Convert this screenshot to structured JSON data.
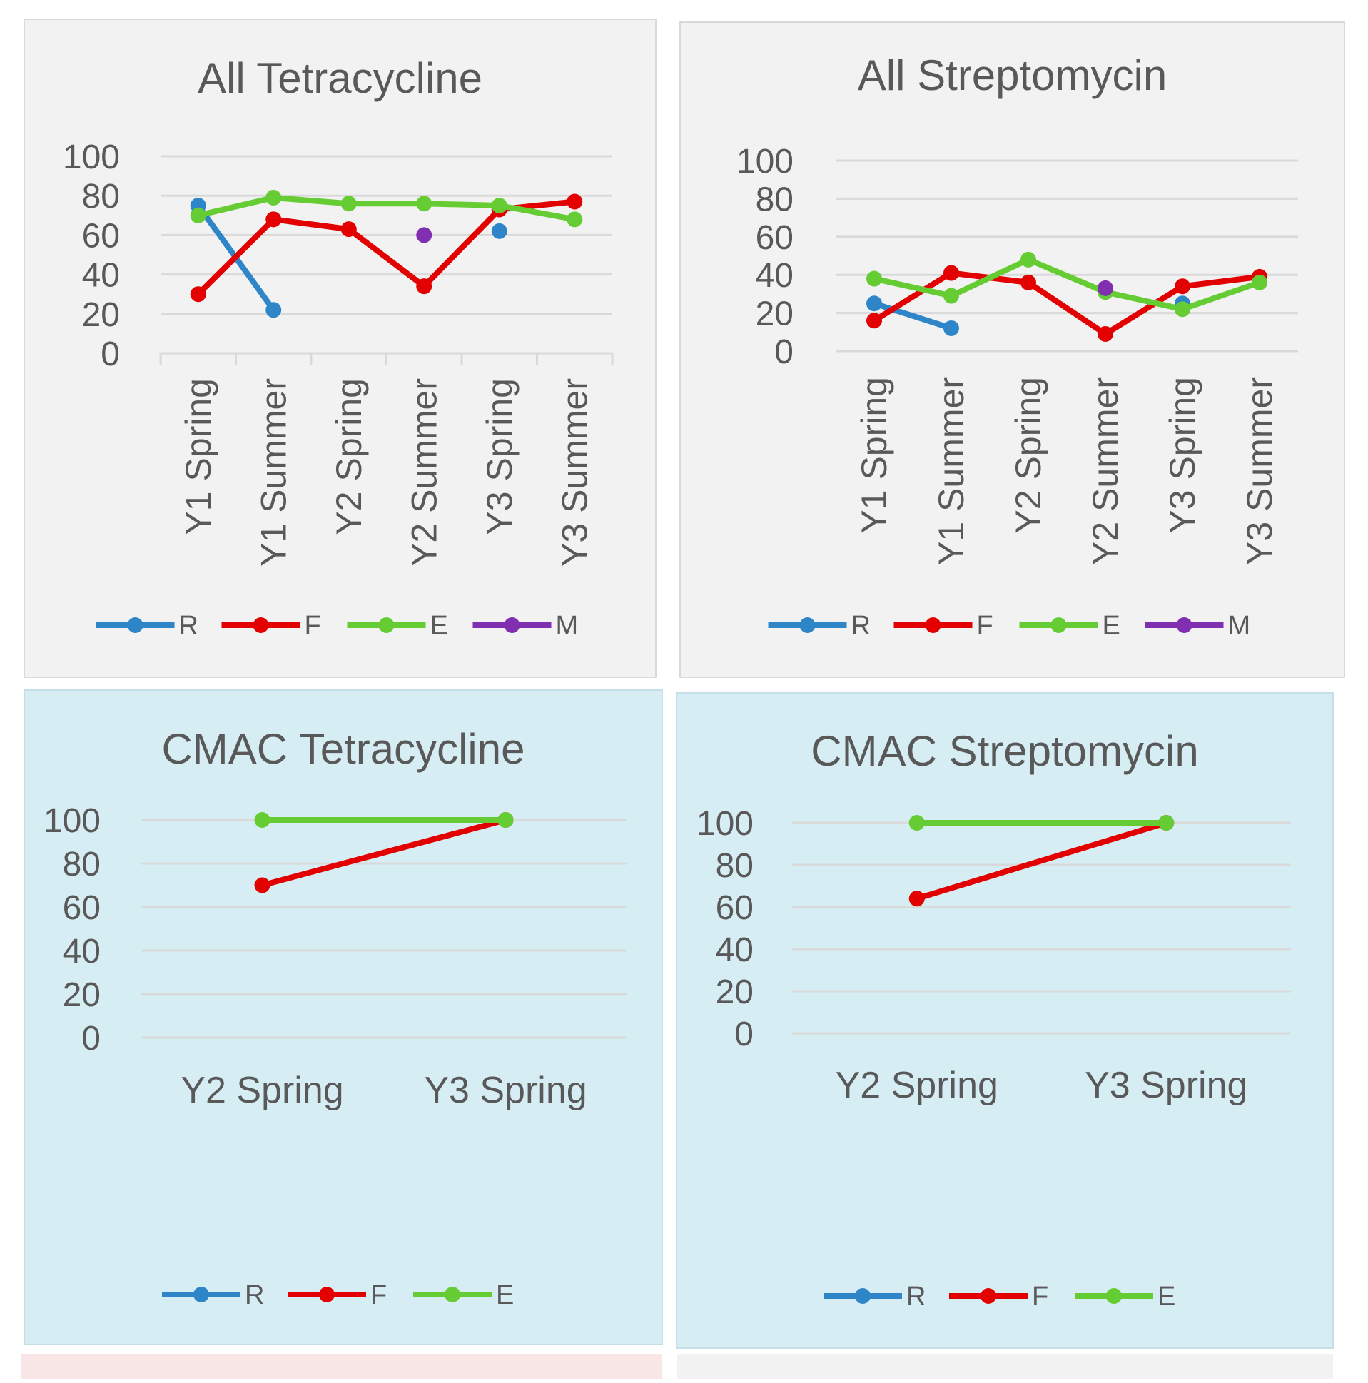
{
  "colors": {
    "R": "#2e86c8",
    "F": "#e30000",
    "E": "#66cc33",
    "M": "#7f2fb0"
  },
  "chart_data": [
    {
      "type": "line",
      "title": "All Tetracycline",
      "categories": [
        "Y1 Spring",
        "Y1 Summer",
        "Y2 Spring",
        "Y2 Summer",
        "Y3 Spring",
        "Y3 Summer"
      ],
      "ylim": [
        0,
        100
      ],
      "yticks": [
        "0",
        "20",
        "40",
        "60",
        "80",
        "100"
      ],
      "grid": true,
      "legend": "bottom",
      "series": [
        {
          "name": "R",
          "values": [
            75,
            22,
            null,
            null,
            62,
            null
          ]
        },
        {
          "name": "F",
          "values": [
            30,
            68,
            63,
            34,
            73,
            77
          ]
        },
        {
          "name": "E",
          "values": [
            70,
            79,
            76,
            76,
            75,
            68
          ]
        },
        {
          "name": "M",
          "values": [
            null,
            null,
            null,
            60,
            null,
            null
          ]
        }
      ]
    },
    {
      "type": "line",
      "title": "All Streptomycin",
      "categories": [
        "Y1 Spring",
        "Y1 Summer",
        "Y2 Spring",
        "Y2 Summer",
        "Y3 Spring",
        "Y3 Summer"
      ],
      "ylim": [
        0,
        100
      ],
      "yticks": [
        "0",
        "20",
        "40",
        "60",
        "80",
        "100"
      ],
      "grid": true,
      "legend": "bottom",
      "series": [
        {
          "name": "R",
          "values": [
            25,
            12,
            null,
            null,
            25,
            null
          ]
        },
        {
          "name": "F",
          "values": [
            16,
            41,
            36,
            9,
            34,
            39
          ]
        },
        {
          "name": "E",
          "values": [
            38,
            29,
            48,
            31,
            22,
            36
          ]
        },
        {
          "name": "M",
          "values": [
            null,
            null,
            null,
            33,
            null,
            null
          ]
        }
      ]
    },
    {
      "type": "line",
      "title": "CMAC Tetracycline",
      "categories": [
        "Y2 Spring",
        "Y3 Spring"
      ],
      "ylim": [
        0,
        100
      ],
      "yticks": [
        "0",
        "20",
        "40",
        "60",
        "80",
        "100"
      ],
      "grid": true,
      "legend": "bottom",
      "series": [
        {
          "name": "R",
          "values": [
            null,
            null
          ]
        },
        {
          "name": "F",
          "values": [
            70,
            100
          ]
        },
        {
          "name": "E",
          "values": [
            100,
            100
          ]
        }
      ]
    },
    {
      "type": "line",
      "title": "CMAC Streptomycin",
      "categories": [
        "Y2 Spring",
        "Y3 Spring"
      ],
      "ylim": [
        0,
        100
      ],
      "yticks": [
        "0",
        "20",
        "40",
        "60",
        "80",
        "100"
      ],
      "grid": true,
      "legend": "bottom",
      "series": [
        {
          "name": "R",
          "values": [
            null,
            null
          ]
        },
        {
          "name": "F",
          "values": [
            64,
            100
          ]
        },
        {
          "name": "E",
          "values": [
            100,
            100
          ]
        }
      ]
    }
  ]
}
